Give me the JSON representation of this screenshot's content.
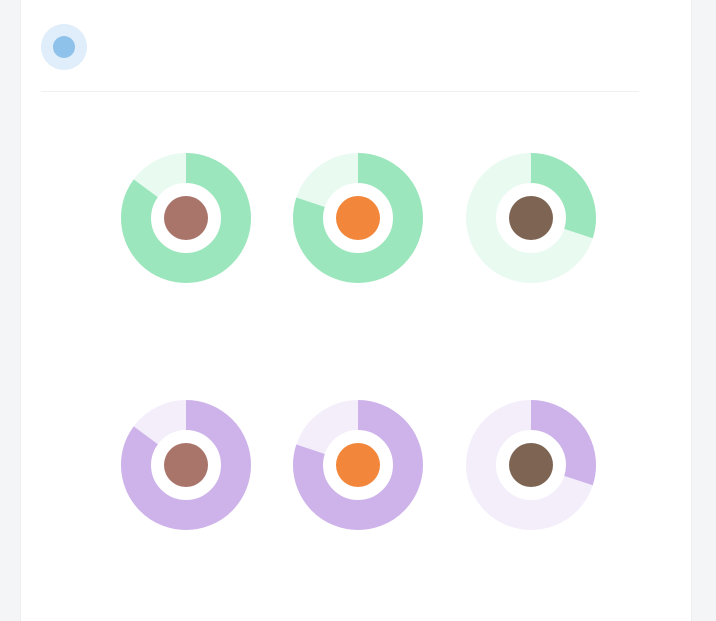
{
  "header": {
    "title": "",
    "icon": "chart-icon",
    "accent": "#8ec2ea"
  },
  "sections": [
    {
      "key": "top",
      "label": "",
      "ring_color": "#9be6bd",
      "track_color": "#e9faf1",
      "gauges": [
        {
          "name": "gauge-1",
          "caption": "",
          "fill": 0.85,
          "dot_color": "#a9746a"
        },
        {
          "name": "gauge-2",
          "caption": "",
          "fill": 0.8,
          "dot_color": "#f2873b"
        },
        {
          "name": "gauge-3",
          "caption": "",
          "fill": 0.3,
          "dot_color": "#7e6553"
        }
      ]
    },
    {
      "key": "bottom",
      "label": "",
      "ring_color": "#cdb3ea",
      "track_color": "#f4eefb",
      "gauges": [
        {
          "name": "gauge-4",
          "caption": "",
          "fill": 0.85,
          "dot_color": "#a9746a"
        },
        {
          "name": "gauge-5",
          "caption": "",
          "fill": 0.8,
          "dot_color": "#f2873b"
        },
        {
          "name": "gauge-6",
          "caption": "",
          "fill": 0.3,
          "dot_color": "#7e6553"
        }
      ]
    }
  ]
}
